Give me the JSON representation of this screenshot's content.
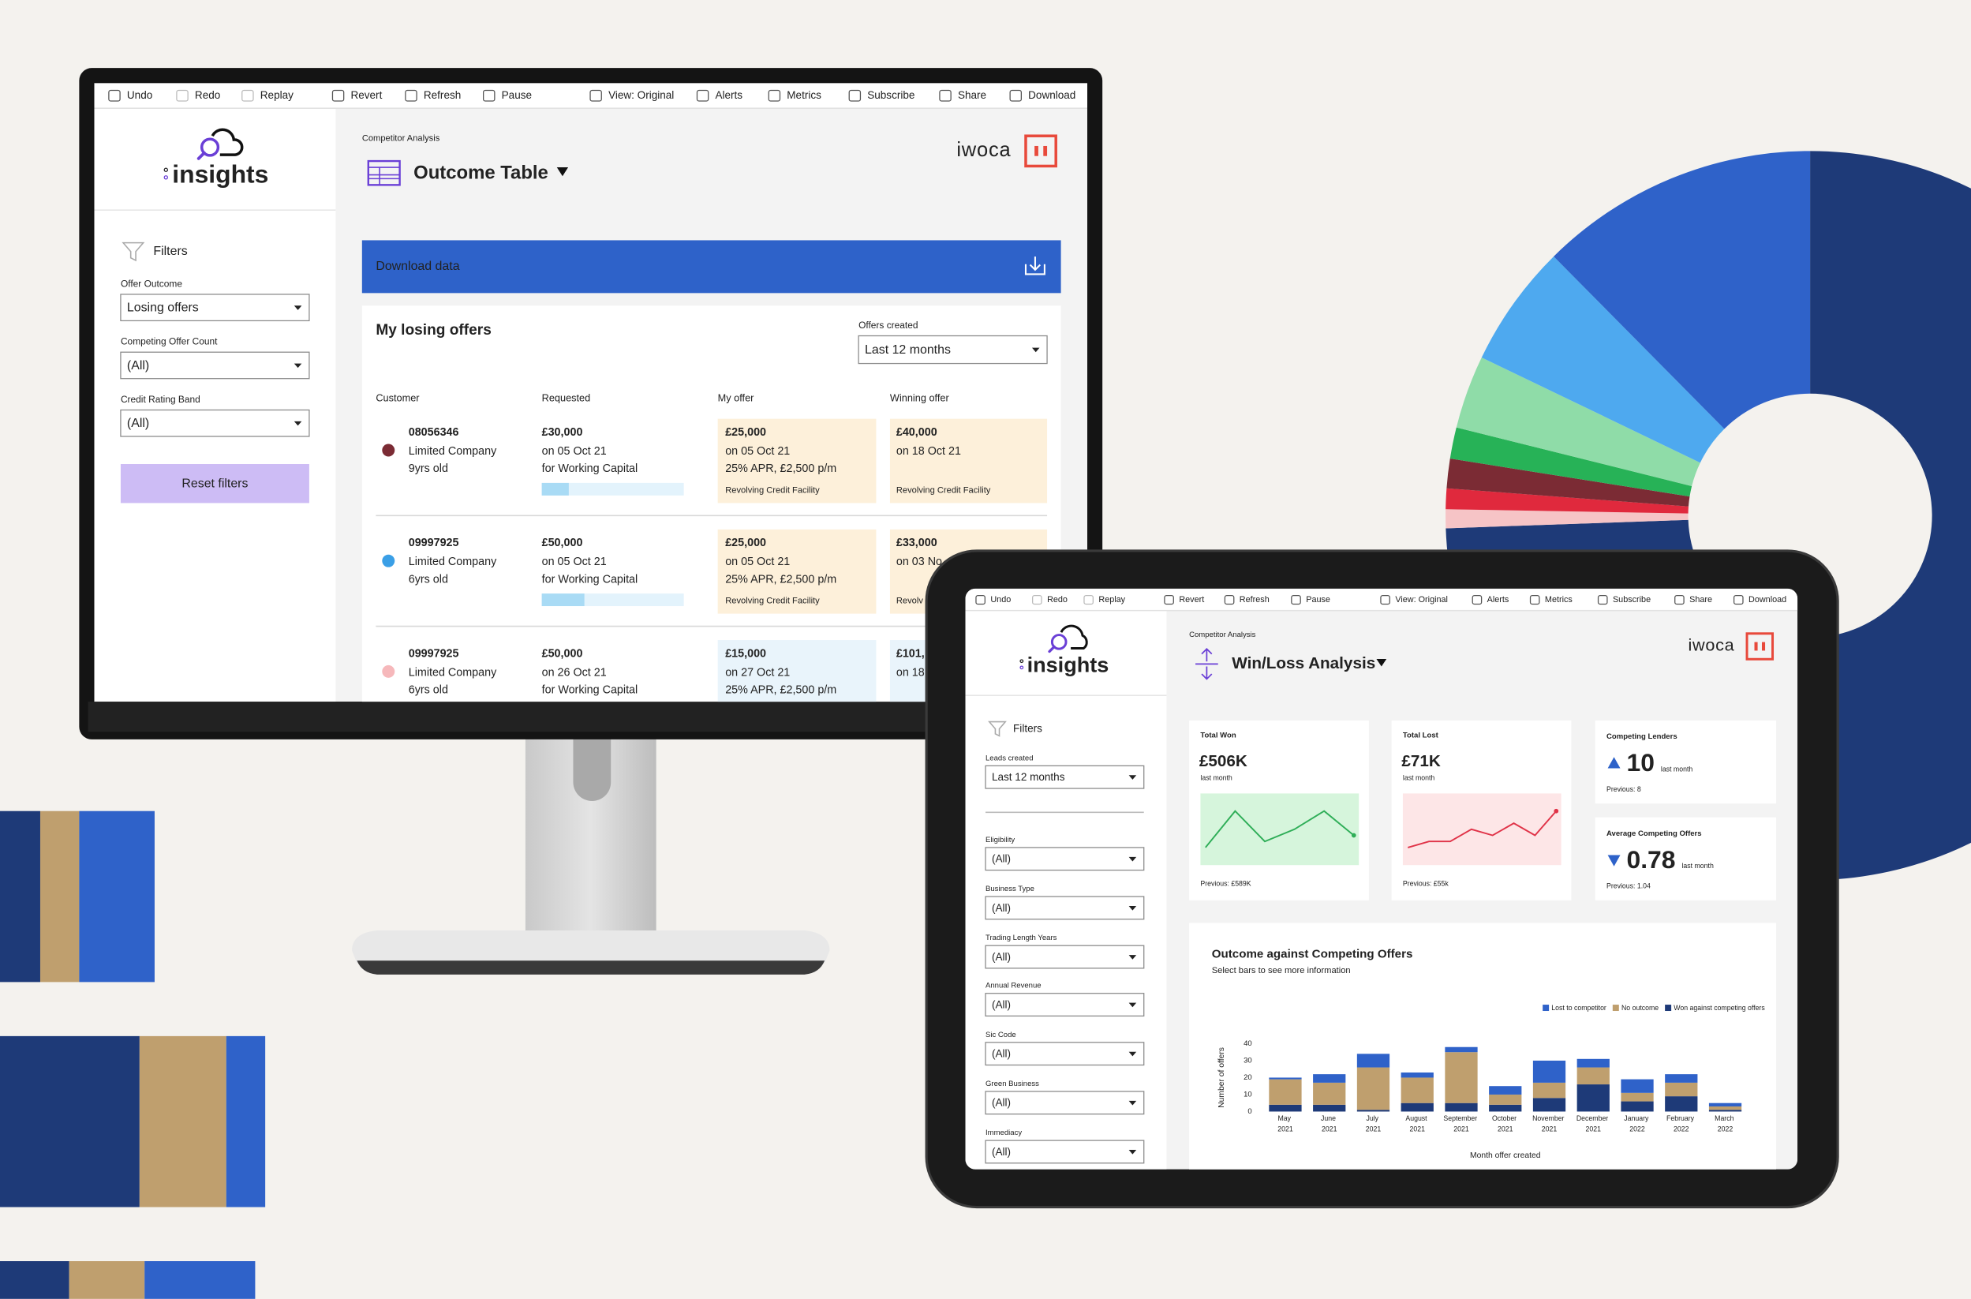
{
  "toolbar": [
    {
      "label": "Undo",
      "enabled": true
    },
    {
      "label": "Redo",
      "enabled": false
    },
    {
      "label": "Replay",
      "enabled": false
    },
    {
      "label": "Revert",
      "enabled": true
    },
    {
      "label": "Refresh",
      "enabled": true
    },
    {
      "label": "Pause",
      "enabled": true
    },
    {
      "label": "View: Original",
      "enabled": true
    },
    {
      "label": "Alerts",
      "enabled": true
    },
    {
      "label": "Metrics",
      "enabled": true
    },
    {
      "label": "Subscribe",
      "enabled": true
    },
    {
      "label": "Share",
      "enabled": true
    },
    {
      "label": "Download",
      "enabled": true
    }
  ],
  "desktop": {
    "brand": "insights",
    "partner": "iwoca",
    "breadcrumb": "Competitor Analysis",
    "title": "Outcome Table",
    "filters": {
      "heading": "Filters",
      "fields": [
        {
          "label": "Offer Outcome",
          "value": "Losing offers"
        },
        {
          "label": "Competing Offer Count",
          "value": "(All)"
        },
        {
          "label": "Credit Rating Band",
          "value": "(All)"
        }
      ],
      "reset": "Reset filters"
    },
    "download": "Download data",
    "table": {
      "title": "My losing offers",
      "period_label": "Offers created",
      "period": "Last 12 months",
      "columns": [
        "Customer",
        "Requested",
        "My offer",
        "Winning offer"
      ],
      "rows": [
        {
          "color": "#7b2b34",
          "customer": [
            "08056346",
            "Limited Company",
            "9yrs old"
          ],
          "requested": [
            "£30,000",
            "on 05 Oct 21",
            "for Working Capital"
          ],
          "progress": 0.19,
          "my_offer": [
            "£25,000",
            "on 05 Oct 21",
            "25% APR, £2,500 p/m",
            "Revolving Credit Facility"
          ],
          "my_offer_color": "#fdf0da",
          "winning_offer": [
            "£40,000",
            "on 18 Oct 21",
            "Revolving Credit Facility"
          ],
          "winning_offer_color": "#fdf0da"
        },
        {
          "color": "#3a9fe6",
          "customer": [
            "09997925",
            "Limited Company",
            "6yrs old"
          ],
          "requested": [
            "£50,000",
            "on 05 Oct 21",
            "for Working Capital"
          ],
          "progress": 0.3,
          "my_offer": [
            "£25,000",
            "on 05 Oct 21",
            "25% APR, £2,500 p/m",
            "Revolving Credit Facility"
          ],
          "my_offer_color": "#fdf0da",
          "winning_offer": [
            "£33,000",
            "on 03 No",
            "Revolv"
          ],
          "winning_offer_color": "#fdf0da"
        },
        {
          "color": "#f6b8bb",
          "customer": [
            "09997925",
            "Limited Company",
            "6yrs old"
          ],
          "requested": [
            "£50,000",
            "on 26 Oct 21",
            "for Working Capital"
          ],
          "my_offer": [
            "£15,000",
            "on 27 Oct 21",
            "25% APR, £2,500 p/m"
          ],
          "my_offer_color": "#e9f4fb",
          "winning_offer": [
            "£101,",
            "on 18"
          ],
          "winning_offer_color": "#e9f4fb"
        }
      ]
    }
  },
  "tablet": {
    "brand": "insights",
    "partner": "iwoca",
    "breadcrumb": "Competitor Analysis",
    "title": "Win/Loss Analysis",
    "filters": {
      "heading": "Filters",
      "fields": [
        {
          "label": "Leads created",
          "value": "Last 12 months"
        },
        {
          "label": "Eligibility",
          "value": "(All)"
        },
        {
          "label": "Business Type",
          "value": "(All)"
        },
        {
          "label": "Trading Length Years",
          "value": "(All)"
        },
        {
          "label": "Annual Revenue",
          "value": "(All)"
        },
        {
          "label": "Sic Code",
          "value": "(All)"
        },
        {
          "label": "Green Business",
          "value": "(All)"
        },
        {
          "label": "Immediacy",
          "value": "(All)"
        }
      ]
    },
    "kpis": [
      {
        "title": "Total Won",
        "value": "£506K",
        "period": "last month",
        "previous": "Previous: £589K",
        "trend": [
          4,
          10,
          5,
          7,
          10,
          6
        ],
        "color": "#2fae58",
        "fill": "#d6f5dc"
      },
      {
        "title": "Total Lost",
        "value": "£71K",
        "period": "last month",
        "previous": "Previous: £55k",
        "trend": [
          2,
          3,
          3,
          5,
          4,
          6,
          4,
          8
        ],
        "color": "#e03348",
        "fill": "#fde6e7"
      },
      {
        "title": "Competing Lenders",
        "value": "10",
        "period": "last month",
        "previous": "Previous: 8",
        "direction": "up",
        "color": "#2e62c9"
      },
      {
        "title": "Average Competing Offers",
        "value": "0.78",
        "period": "last month",
        "previous": "Previous: 1.04",
        "direction": "down",
        "color": "#2e62c9"
      }
    ],
    "chart_data": {
      "type": "bar",
      "stacked": true,
      "title": "Outcome against Competing Offers",
      "subtitle": "Select bars to see more information",
      "ylabel": "Number of offers",
      "xlabel": "Month offer created",
      "categories": [
        "May 2021",
        "June 2021",
        "July 2021",
        "August 2021",
        "September 2021",
        "October 2021",
        "November 2021",
        "December 2021",
        "January 2022",
        "February 2022",
        "March 2022"
      ],
      "series": [
        {
          "name": "Lost to competitor",
          "color": "#2f62c9",
          "values": [
            1,
            5,
            8,
            3,
            3,
            5,
            13,
            5,
            8,
            5,
            2
          ]
        },
        {
          "name": "No outcome",
          "color": "#bf9f6e",
          "values": [
            15,
            13,
            25,
            15,
            30,
            6,
            9,
            10,
            5,
            8,
            2
          ]
        },
        {
          "name": "Won against competing offers",
          "color": "#1e3a78",
          "values": [
            4,
            4,
            1,
            5,
            5,
            4,
            8,
            16,
            6,
            9,
            1
          ]
        }
      ],
      "ylim": [
        0,
        40
      ],
      "yticks": [
        0,
        10,
        20,
        30,
        40
      ]
    }
  }
}
